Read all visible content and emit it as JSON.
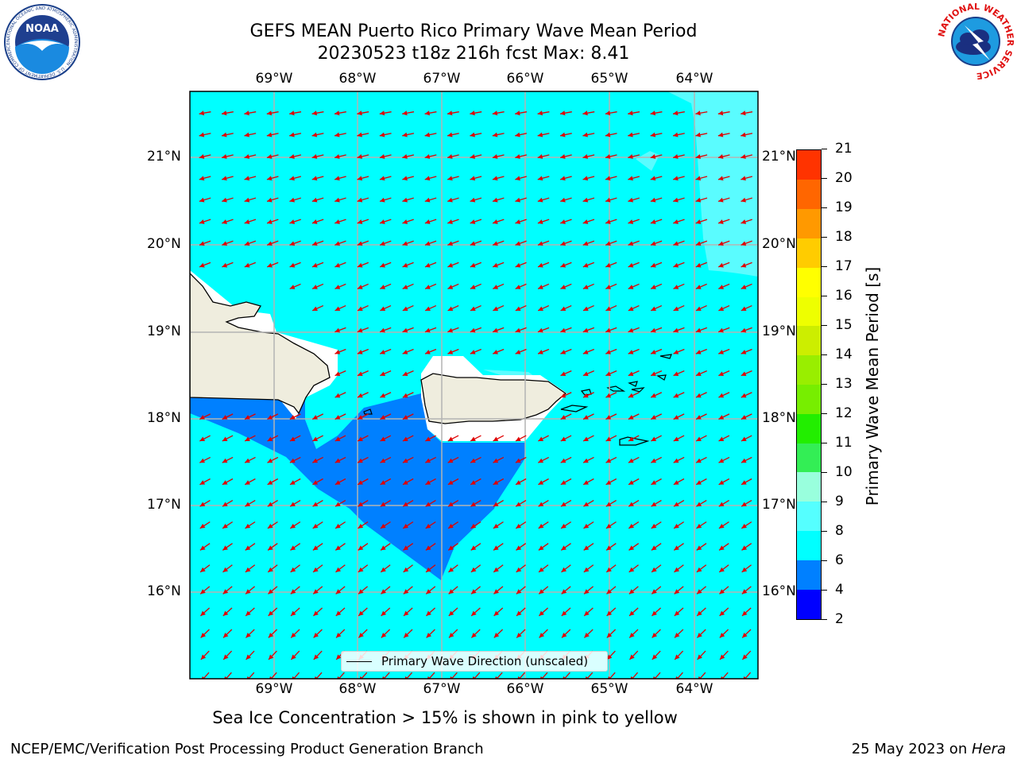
{
  "title": {
    "line1": "GEFS MEAN Puerto Rico Primary Wave Mean Period",
    "line2": "20230523 t18z 216h fcst   Max: 8.41"
  },
  "map": {
    "lon_labels": [
      "69°W",
      "68°W",
      "67°W",
      "66°W",
      "65°W",
      "64°W"
    ],
    "lat_labels": [
      "21°N",
      "20°N",
      "19°N",
      "18°N",
      "17°N",
      "16°N"
    ],
    "legend_label": "Primary Wave Direction (unscaled)",
    "vector_color": "#e00000",
    "ocean_color": "#00ffff"
  },
  "colorbar": {
    "title": "Primary Wave Mean Period [s]",
    "ticks": [
      "2",
      "4",
      "6",
      "8",
      "9",
      "10",
      "11",
      "12",
      "13",
      "14",
      "15",
      "16",
      "17",
      "18",
      "19",
      "20",
      "21"
    ],
    "colors": [
      "#0000ff",
      "#0080ff",
      "#00ffff",
      "#55ffff",
      "#99ffdd",
      "#33ee55",
      "#22ee00",
      "#77ee00",
      "#99ee00",
      "#ccee00",
      "#eeff00",
      "#ffff00",
      "#ffcc00",
      "#ff9900",
      "#ff6600",
      "#ff3300",
      "#ff0000"
    ]
  },
  "subnote": "Sea Ice Concentration > 15% is shown in pink to yellow",
  "footer": {
    "left": "NCEP/EMC/Verification Post Processing Product Generation Branch",
    "right_prefix": "25 May 2023 on ",
    "right_host": "Hera"
  },
  "logos": {
    "noaa_text": "NOAA",
    "noaa_ring": "NATIONAL OCEANIC AND ATMOSPHERIC ADMINISTRATION · U.S. DEPARTMENT OF COMMERCE",
    "nws_ring": "NATIONAL WEATHER SERVICE"
  }
}
